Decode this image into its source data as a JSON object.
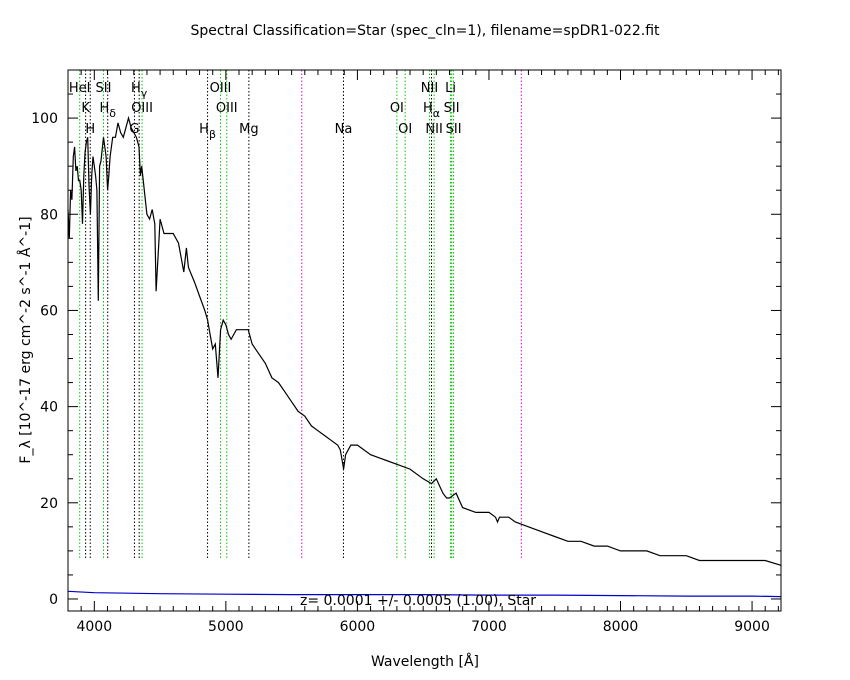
{
  "chart_data": {
    "type": "line",
    "title": "Spectral Classification=Star (spec_cln=1), filename=spDR1-022.fit",
    "xlabel": "Wavelength [Å]",
    "ylabel": "F_λ [10^-17 erg cm^-2 s^-1 Å^-1]",
    "xlim": [
      3800,
      9220
    ],
    "ylim": [
      -2.5,
      110
    ],
    "xticks": [
      4000,
      5000,
      6000,
      7000,
      8000,
      9000
    ],
    "yticks": [
      0,
      20,
      40,
      60,
      80,
      100
    ],
    "grid": false,
    "annotation": "z= 0.0001 +/- 0.0005 (1.00), Star",
    "colors": {
      "flux": "#000000",
      "error": "#0000cc",
      "line_black": "#000000",
      "line_green": "#00cc00",
      "line_magenta": "#dd00dd"
    },
    "series": [
      {
        "key": "flux",
        "x": [
          3800,
          3810,
          3820,
          3830,
          3840,
          3850,
          3860,
          3870,
          3880,
          3890,
          3900,
          3910,
          3920,
          3930,
          3940,
          3950,
          3960,
          3970,
          3980,
          3990,
          4000,
          4010,
          4020,
          4030,
          4040,
          4050,
          4070,
          4090,
          4101,
          4110,
          4120,
          4140,
          4160,
          4180,
          4200,
          4220,
          4240,
          4260,
          4280,
          4300,
          4320,
          4340,
          4350,
          4360,
          4380,
          4400,
          4420,
          4440,
          4460,
          4470,
          4490,
          4500,
          4530,
          4560,
          4600,
          4640,
          4680,
          4700,
          4715,
          4730,
          4760,
          4800,
          4840,
          4861,
          4880,
          4900,
          4920,
          4940,
          4960,
          4980,
          5000,
          5020,
          5040,
          5080,
          5120,
          5170,
          5200,
          5250,
          5300,
          5350,
          5400,
          5450,
          5500,
          5550,
          5600,
          5650,
          5700,
          5750,
          5800,
          5850,
          5870,
          5889,
          5895,
          5910,
          5950,
          6000,
          6100,
          6200,
          6300,
          6400,
          6500,
          6563,
          6600,
          6650,
          6678,
          6700,
          6750,
          6800,
          6900,
          7000,
          7050,
          7065,
          7080,
          7100,
          7150,
          7200,
          7300,
          7400,
          7500,
          7600,
          7700,
          7800,
          7900,
          8000,
          8100,
          8200,
          8300,
          8400,
          8500,
          8600,
          8700,
          8800,
          8900,
          9000,
          9100,
          9220
        ],
        "y": [
          81,
          75,
          85,
          83,
          92,
          94,
          89,
          90,
          87,
          87,
          85,
          78,
          88,
          93,
          95,
          96,
          86,
          80,
          88,
          92,
          90,
          88,
          85,
          62,
          90,
          91,
          96,
          92,
          85,
          88,
          92,
          96,
          96,
          99,
          97,
          96,
          98,
          100,
          98,
          97,
          96,
          94,
          88,
          90,
          85,
          80,
          79,
          81,
          78,
          64,
          74,
          79,
          76,
          76,
          76,
          74,
          68,
          73,
          69,
          68,
          66,
          63,
          60,
          58,
          55,
          52,
          53,
          46,
          56,
          58,
          57,
          55,
          54,
          56,
          56,
          56,
          53,
          51,
          49,
          46,
          45,
          43,
          41,
          39,
          38,
          36,
          35,
          34,
          33,
          32,
          31,
          28,
          27,
          30,
          32,
          32,
          30,
          29,
          28,
          27,
          25,
          24,
          25,
          22,
          21,
          21,
          22,
          19,
          18,
          18,
          17,
          16,
          17,
          17,
          17,
          16,
          15,
          14,
          13,
          12,
          12,
          11,
          11,
          10,
          10,
          10,
          9,
          9,
          9,
          8,
          8,
          8,
          8,
          8,
          8,
          7
        ]
      },
      {
        "key": "error",
        "x": [
          3800,
          4000,
          4500,
          5000,
          5500,
          6000,
          6500,
          7000,
          7500,
          8000,
          8500,
          9000,
          9220
        ],
        "y": [
          1.6,
          1.3,
          1.1,
          1.0,
          0.9,
          0.9,
          0.9,
          0.8,
          0.8,
          0.7,
          0.6,
          0.6,
          0.5
        ]
      }
    ],
    "emission_lines": [
      {
        "label": "K",
        "wavelength": 3934,
        "color": "line_black",
        "row": 2
      },
      {
        "label": "H",
        "wavelength": 3969,
        "color": "line_black",
        "row": 3
      },
      {
        "label": "HeI",
        "wavelength": 3889,
        "color": "line_green",
        "row": 1
      },
      {
        "label": "SII",
        "wavelength": 4070,
        "color": "line_green",
        "row": 1
      },
      {
        "label": "Hδ",
        "wavelength": 4102,
        "color": "line_black",
        "row": 2
      },
      {
        "label": "G",
        "wavelength": 4305,
        "color": "line_black",
        "row": 3
      },
      {
        "label": "Hγ",
        "wavelength": 4341,
        "color": "line_black",
        "row": 1
      },
      {
        "label": "OIII",
        "wavelength": 4363,
        "color": "line_green",
        "row": 2
      },
      {
        "label": "Hβ",
        "wavelength": 4861,
        "color": "line_black",
        "row": 3
      },
      {
        "label": "OIII",
        "wavelength": 4959,
        "color": "line_green",
        "row": 1
      },
      {
        "label": "OIII",
        "wavelength": 5007,
        "color": "line_green",
        "row": 2
      },
      {
        "label": "Mg",
        "wavelength": 5175,
        "color": "line_black",
        "row": 3
      },
      {
        "label": "Na",
        "wavelength": 5894,
        "color": "line_black",
        "row": 3
      },
      {
        "label": "OI",
        "wavelength": 6300,
        "color": "line_green",
        "row": 2
      },
      {
        "label": "OI",
        "wavelength": 6363,
        "color": "line_green",
        "row": 3
      },
      {
        "label": "NII",
        "wavelength": 6548,
        "color": "line_green",
        "row": 1
      },
      {
        "label": "Hα",
        "wavelength": 6563,
        "color": "line_black",
        "row": 2
      },
      {
        "label": "NII",
        "wavelength": 6583,
        "color": "line_green",
        "row": 3
      },
      {
        "label": "Li",
        "wavelength": 6708,
        "color": "line_green",
        "row": 1
      },
      {
        "label": "SII",
        "wavelength": 6716,
        "color": "line_green",
        "row": 2
      },
      {
        "label": "SII",
        "wavelength": 6731,
        "color": "line_green",
        "row": 3
      }
    ],
    "sky_lines": [
      5577,
      7246
    ]
  }
}
